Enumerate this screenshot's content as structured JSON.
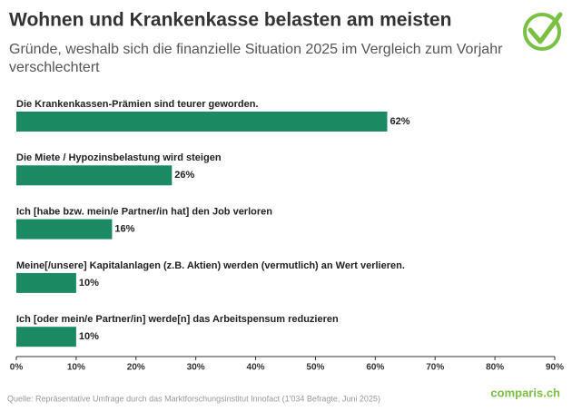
{
  "chart_data": {
    "type": "bar",
    "orientation": "horizontal",
    "title": "Wohnen und Krankenkasse belasten am meisten",
    "subtitle": [
      "Gründe, weshalb sich die finanzielle Situation 2025 im Vergleich zum Vorjahr",
      "verschlechtert"
    ],
    "categories": [
      "Die Krankenkassen-Prämien sind teurer geworden.",
      "Die Miete / Hypozinsbelastung wird steigen",
      "Ich [habe bzw. mein/e Partner/in hat] den Job verloren",
      "Meine[/unsere] Kapitalanlagen (z.B. Aktien) werden (vermutlich) an Wert verlieren.",
      "Ich [oder mein/e Partner/in] werde[n] das Arbeitspensum reduzieren"
    ],
    "values": [
      62,
      26,
      16,
      10,
      10
    ],
    "value_labels": [
      "62%",
      "26%",
      "16%",
      "10%",
      "10%"
    ],
    "color": "#1b8a62",
    "xlim": [
      0,
      90
    ],
    "xticks": [
      {
        "value": 0,
        "label": "0%"
      },
      {
        "value": 10,
        "label": "10%"
      },
      {
        "value": 20,
        "label": "20%"
      },
      {
        "value": 30,
        "label": "30%"
      },
      {
        "value": 40,
        "label": "40%"
      },
      {
        "value": 50,
        "label": "50%"
      },
      {
        "value": 60,
        "label": "60%"
      },
      {
        "value": 70,
        "label": "70%"
      },
      {
        "value": 80,
        "label": "80%"
      },
      {
        "value": 90,
        "label": "90%"
      }
    ],
    "source": "Quelle: Repräsentative Umfrage durch das Marktforschungsinstitut Innofact (1'034 Befragte, Juni 2025)",
    "logo": "comparis.ch"
  }
}
